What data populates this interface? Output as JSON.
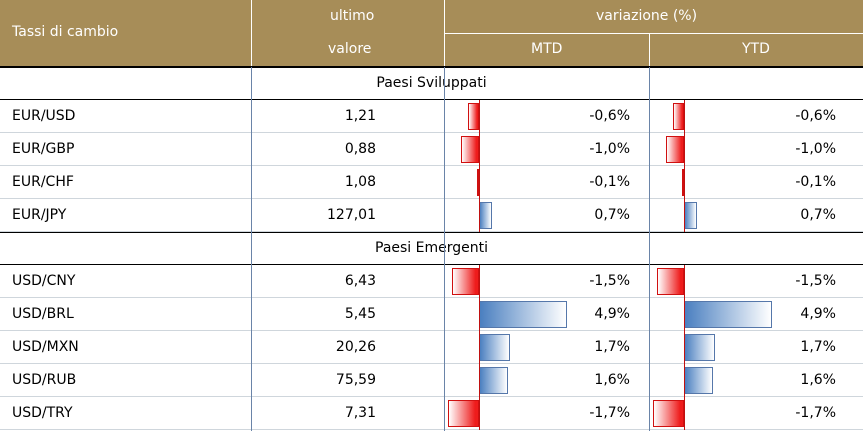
{
  "header": {
    "title": "Tassi di cambio",
    "last_value_line1": "ultimo",
    "last_value_line2": "valore",
    "variation": "variazione (%)",
    "mtd": "MTD",
    "ytd": "YTD"
  },
  "sections": [
    {
      "title": "Paesi Sviluppati",
      "rows": [
        {
          "pair": "EUR/USD",
          "value": "1,21",
          "mtd": "-0,6%",
          "ytd": "-0,6%",
          "mtd_num": -0.6,
          "ytd_num": -0.6
        },
        {
          "pair": "EUR/GBP",
          "value": "0,88",
          "mtd": "-1,0%",
          "ytd": "-1,0%",
          "mtd_num": -1.0,
          "ytd_num": -1.0
        },
        {
          "pair": "EUR/CHF",
          "value": "1,08",
          "mtd": "-0,1%",
          "ytd": "-0,1%",
          "mtd_num": -0.1,
          "ytd_num": -0.1
        },
        {
          "pair": "EUR/JPY",
          "value": "127,01",
          "mtd": "0,7%",
          "ytd": "0,7%",
          "mtd_num": 0.7,
          "ytd_num": 0.7
        }
      ]
    },
    {
      "title": "Paesi Emergenti",
      "rows": [
        {
          "pair": "USD/CNY",
          "value": "6,43",
          "mtd": "-1,5%",
          "ytd": "-1,5%",
          "mtd_num": -1.5,
          "ytd_num": -1.5
        },
        {
          "pair": "USD/BRL",
          "value": "5,45",
          "mtd": "4,9%",
          "ytd": "4,9%",
          "mtd_num": 4.9,
          "ytd_num": 4.9
        },
        {
          "pair": "USD/MXN",
          "value": "20,26",
          "mtd": "1,7%",
          "ytd": "1,7%",
          "mtd_num": 1.7,
          "ytd_num": 1.7
        },
        {
          "pair": "USD/RUB",
          "value": "75,59",
          "mtd": "1,6%",
          "ytd": "1,6%",
          "mtd_num": 1.6,
          "ytd_num": 1.6
        },
        {
          "pair": "USD/TRY",
          "value": "7,31",
          "mtd": "-1,7%",
          "ytd": "-1,7%",
          "mtd_num": -1.7,
          "ytd_num": -1.7
        }
      ]
    }
  ],
  "colors": {
    "header_bg": "#a78d58",
    "negative_bar": "#ee1c1c",
    "positive_bar": "#4a7fc0"
  }
}
